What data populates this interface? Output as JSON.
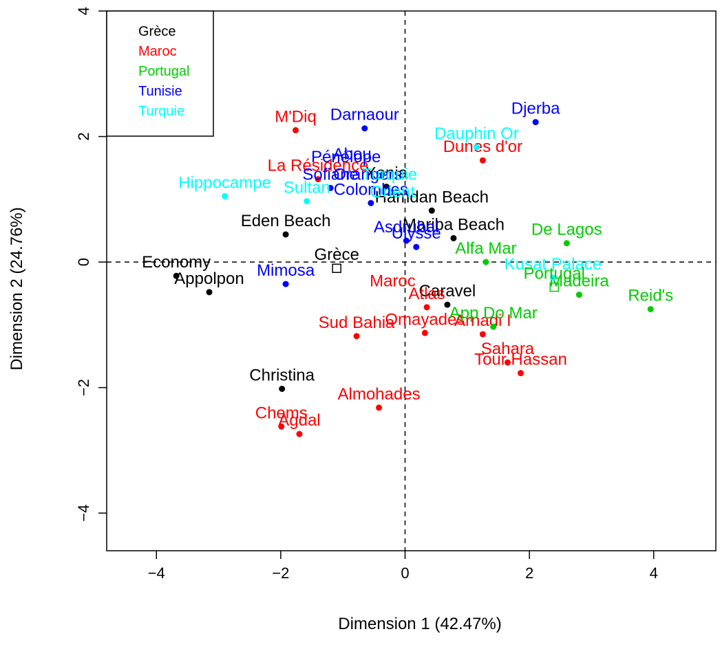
{
  "chart_data": {
    "type": "scatter",
    "title": "",
    "xlabel": "Dimension 1 (42.47%)",
    "ylabel": "Dimension 2 (24.76%)",
    "xlim": [
      -4.8,
      5.0
    ],
    "ylim": [
      -4.6,
      4.0
    ],
    "xticks": [
      -4,
      -2,
      0,
      2,
      4
    ],
    "yticks": [
      -4,
      -2,
      0,
      2,
      4
    ],
    "grid": false,
    "reference_lines": {
      "x": 0,
      "y": 0,
      "style": "dashed"
    },
    "legend": {
      "placement": "top-left",
      "entries": [
        {
          "name": "Grèce",
          "color": "#000000"
        },
        {
          "name": "Maroc",
          "color": "#ff0000"
        },
        {
          "name": "Portugal",
          "color": "#00cd00"
        },
        {
          "name": "Tunisie",
          "color": "#0000ff"
        },
        {
          "name": "Turquie",
          "color": "#00ffff"
        }
      ]
    },
    "series": [
      {
        "name": "Grèce",
        "color": "#000000",
        "points": [
          {
            "label": "Economy",
            "x": -3.68,
            "y": -0.22
          },
          {
            "label": "Appolpon",
            "x": -3.15,
            "y": -0.48
          },
          {
            "label": "Eden Beach",
            "x": -1.92,
            "y": 0.44
          },
          {
            "label": "Christina",
            "x": -1.98,
            "y": -2.02
          },
          {
            "label": "Xenia",
            "x": -0.3,
            "y": 1.2
          },
          {
            "label": "Hamdan Beach",
            "x": 0.43,
            "y": 0.82
          },
          {
            "label": "Mariba Beach",
            "x": 0.78,
            "y": 0.38
          },
          {
            "label": "Caravel",
            "x": 0.68,
            "y": -0.68
          }
        ]
      },
      {
        "name": "Maroc",
        "color": "#ff0000",
        "points": [
          {
            "label": "M'Diq",
            "x": -1.76,
            "y": 2.1
          },
          {
            "label": "La Résidence",
            "x": -1.4,
            "y": 1.32
          },
          {
            "label": "Dunes d'or",
            "x": 1.25,
            "y": 1.62
          },
          {
            "label": "Sud Bahia",
            "x": -0.78,
            "y": -1.18
          },
          {
            "label": "Atlas",
            "x": 0.35,
            "y": -0.72
          },
          {
            "label": "Omayades",
            "x": 0.32,
            "y": -1.13
          },
          {
            "label": "Arnadi I",
            "x": 1.25,
            "y": -1.15
          },
          {
            "label": "Sahara",
            "x": 1.65,
            "y": -1.6
          },
          {
            "label": "Tour Hassan",
            "x": 1.86,
            "y": -1.77
          },
          {
            "label": "Almohades",
            "x": -0.42,
            "y": -2.32
          },
          {
            "label": "Chems",
            "x": -1.99,
            "y": -2.62
          },
          {
            "label": "Agdal",
            "x": -1.7,
            "y": -2.74
          }
        ]
      },
      {
        "name": "Portugal",
        "color": "#00cd00",
        "points": [
          {
            "label": "De Lagos",
            "x": 2.6,
            "y": 0.3
          },
          {
            "label": "Alfa Mar",
            "x": 1.3,
            "y": 0.0
          },
          {
            "label": "Madeira",
            "x": 2.8,
            "y": -0.52
          },
          {
            "label": "Reid's",
            "x": 3.95,
            "y": -0.75
          },
          {
            "label": "App Do Mar",
            "x": 1.42,
            "y": -1.03
          }
        ]
      },
      {
        "name": "Tunisie",
        "color": "#0000ff",
        "points": [
          {
            "label": "Darnaour",
            "x": -0.65,
            "y": 2.13
          },
          {
            "label": "Djerba",
            "x": 2.1,
            "y": 2.23
          },
          {
            "label": "Sofiane",
            "x": -1.2,
            "y": 1.18
          },
          {
            "label": "Colombes",
            "x": -0.55,
            "y": 0.94
          },
          {
            "label": "Asdrubal",
            "x": 0.02,
            "y": 0.34
          },
          {
            "label": "Ulysse",
            "x": 0.18,
            "y": 0.24
          },
          {
            "label": "Mimosa",
            "x": -1.92,
            "y": -0.35
          }
        ]
      },
      {
        "name": "Turquie",
        "color": "#00ffff",
        "points": [
          {
            "label": "Hippocampe",
            "x": -2.9,
            "y": 1.05
          },
          {
            "label": "Sultan",
            "x": -1.58,
            "y": 0.97
          },
          {
            "label": "Dauphin Or",
            "x": 1.15,
            "y": 1.83
          },
          {
            "label": "Kusat Palace",
            "x": 2.38,
            "y": -0.25
          }
        ]
      }
    ],
    "label_only_texts": [
      {
        "label": "Pénélope",
        "color": "#0000ff",
        "x": -0.95,
        "y": 1.46
      },
      {
        "label": "Abou",
        "color": "#0000ff",
        "x": -0.85,
        "y": 1.5
      },
      {
        "label": "Orangers",
        "color": "#0000ff",
        "x": -0.6,
        "y": 1.18
      },
      {
        "label": "Turquie",
        "color": "#00ffff",
        "x": -0.25,
        "y": 1.18
      },
      {
        "label": "Orient",
        "color": "#00ffff",
        "x": -0.2,
        "y": 0.9
      },
      {
        "label": "Maroc",
        "color": "#ff0000",
        "x": -0.2,
        "y": -0.52
      }
    ],
    "centroids": [
      {
        "label": "Grèce",
        "color": "#000000",
        "x": -1.1,
        "y": -0.1
      },
      {
        "label": "Portugal",
        "color": "#00cd00",
        "x": 2.4,
        "y": -0.4
      }
    ]
  }
}
